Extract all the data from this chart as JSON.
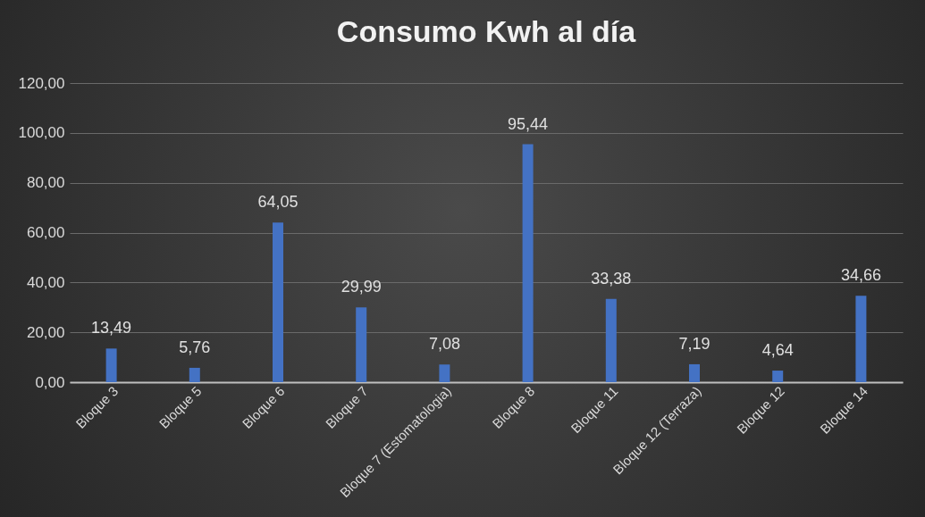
{
  "chart_data": {
    "type": "bar",
    "title": "Consumo Kwh al día",
    "categories": [
      "Bloque 3",
      "Bloque 5",
      "Bloque 6",
      "Bloque 7",
      "Bloque 7 (Estomatologia)",
      "Bloque 8",
      "Bloque 11",
      "Bloque 12 (Terraza)",
      "Bloque 12",
      "Bloque 14"
    ],
    "values": [
      13.49,
      5.76,
      64.05,
      29.99,
      7.08,
      95.44,
      33.38,
      7.19,
      4.64,
      34.66
    ],
    "value_labels": [
      "13,49",
      "5,76",
      "64,05",
      "29,99",
      "7,08",
      "95,44",
      "33,38",
      "7,19",
      "4,64",
      "34,66"
    ],
    "color": "#4472c4",
    "ylim": [
      0,
      120
    ],
    "yticks": [
      {
        "value": 0,
        "label": "0,00"
      },
      {
        "value": 20,
        "label": "20,00"
      },
      {
        "value": 40,
        "label": "40,00"
      },
      {
        "value": 60,
        "label": "60,00"
      },
      {
        "value": 80,
        "label": "80,00"
      },
      {
        "value": 100,
        "label": "100,00"
      },
      {
        "value": 120,
        "label": "120,00"
      }
    ],
    "grid": "y"
  }
}
